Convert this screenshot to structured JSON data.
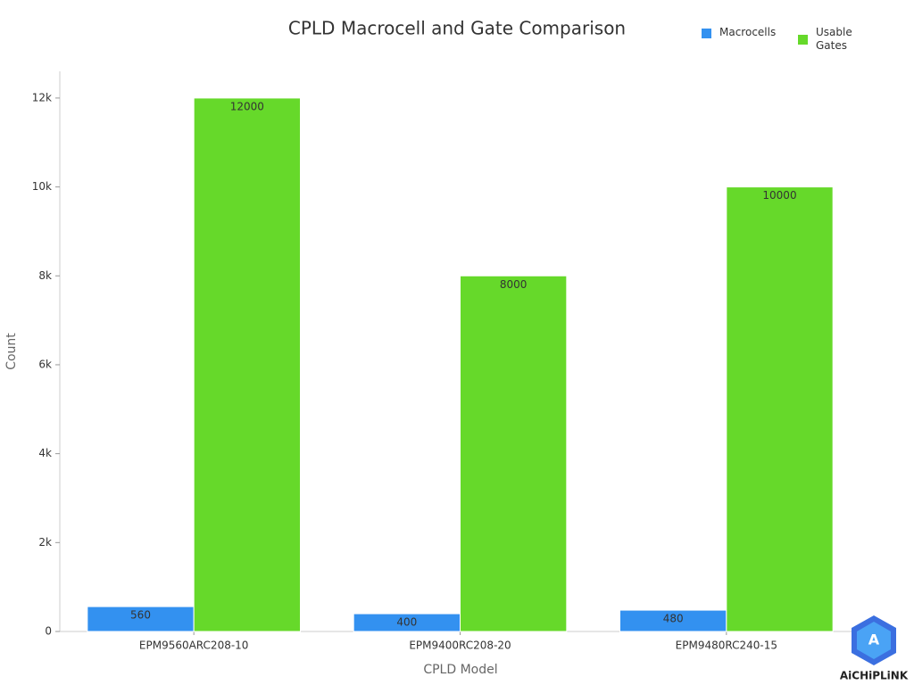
{
  "chart_data": {
    "type": "bar",
    "title": "CPLD Macrocell and Gate Comparison",
    "x_label": "CPLD Model",
    "y_label": "Count",
    "categories": [
      "EPM9560ARC208-10",
      "EPM9400RC208-20",
      "EPM9480RC240-15"
    ],
    "series": [
      {
        "name": "Macrocells",
        "color": "#3391f0",
        "values": [
          560,
          400,
          480
        ]
      },
      {
        "name": "Usable Gates",
        "color": "#66d92a",
        "values": [
          12000,
          8000,
          10000
        ]
      }
    ],
    "ylim": [
      0,
      12600
    ],
    "yticks": [
      0,
      {
        "value": 2000,
        "label": "2k"
      },
      {
        "value": 4000,
        "label": "4k"
      },
      {
        "value": 6000,
        "label": "6k"
      },
      {
        "value": 8000,
        "label": "8k"
      },
      {
        "value": 10000,
        "label": "10k"
      },
      {
        "value": 12000,
        "label": "12k"
      }
    ],
    "legend": "top-right",
    "grid": false,
    "watermark": "AiCHiPLiNK"
  }
}
